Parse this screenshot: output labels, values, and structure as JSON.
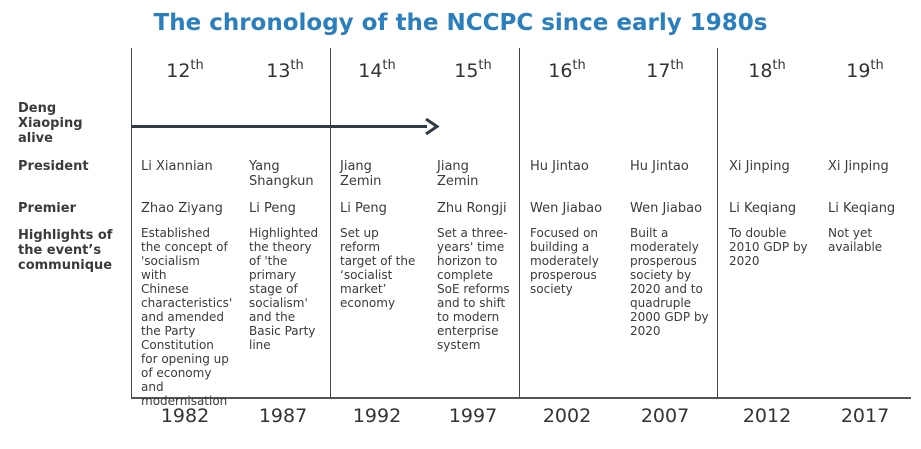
{
  "title": "The chronology of the NCCPC since early 1980s",
  "congresses": [
    {
      "num": "12",
      "sup": "th"
    },
    {
      "num": "13",
      "sup": "th"
    },
    {
      "num": "14",
      "sup": "th"
    },
    {
      "num": "15",
      "sup": "th"
    },
    {
      "num": "16",
      "sup": "th"
    },
    {
      "num": "17",
      "sup": "th"
    },
    {
      "num": "18",
      "sup": "th"
    },
    {
      "num": "19",
      "sup": "th"
    }
  ],
  "row_labels": {
    "deng": "Deng\nXiaoping\nalive",
    "president": "President",
    "premier": "Premier",
    "highlights": "Highlights of\nthe event’s\ncommunique"
  },
  "presidents": [
    "Li Xiannian",
    "Yang\nShangkun",
    "Jiang\nZemin",
    "Jiang\nZemin",
    "Hu Jintao",
    "Hu Jintao",
    "Xi Jinping",
    "Xi Jinping"
  ],
  "premiers": [
    "Zhao Ziyang",
    "Li Peng",
    "Li Peng",
    "Zhu Rongji",
    "Wen Jiabao",
    "Wen Jiabao",
    "Li Keqiang",
    "Li Keqiang"
  ],
  "highlights": [
    "Established\nthe concept of\n'socialism with\nChinese\ncharacteristics'\nand amended\nthe Party\nConstitution\nfor opening up\nof economy\nand\nmodernisation",
    "Highlighted\nthe theory\nof 'the\nprimary\nstage of\nsocialism'\nand the\nBasic Party\nline",
    "Set up\nreform\ntarget of the\n‘socialist\nmarket’\neconomy",
    "Set a three-\nyears' time\nhorizon to\ncomplete\nSoE reforms\nand to shift\nto modern\nenterprise\nsystem",
    "Focused on\nbuilding a\nmoderately\nprosperous\nsociety",
    "Built a\nmoderately\nprosperous\nsociety by\n2020 and to\nquadruple\n2000 GDP by\n2020",
    "To double\n2010 GDP by\n2020",
    "Not yet\navailable"
  ],
  "years": [
    "1982",
    "1987",
    "1992",
    "1997",
    "2002",
    "2007",
    "2012",
    "2017"
  ],
  "colors": {
    "title": "#2a7fbc",
    "arrow": "#2e3a46",
    "text": "#3b3b3b"
  }
}
